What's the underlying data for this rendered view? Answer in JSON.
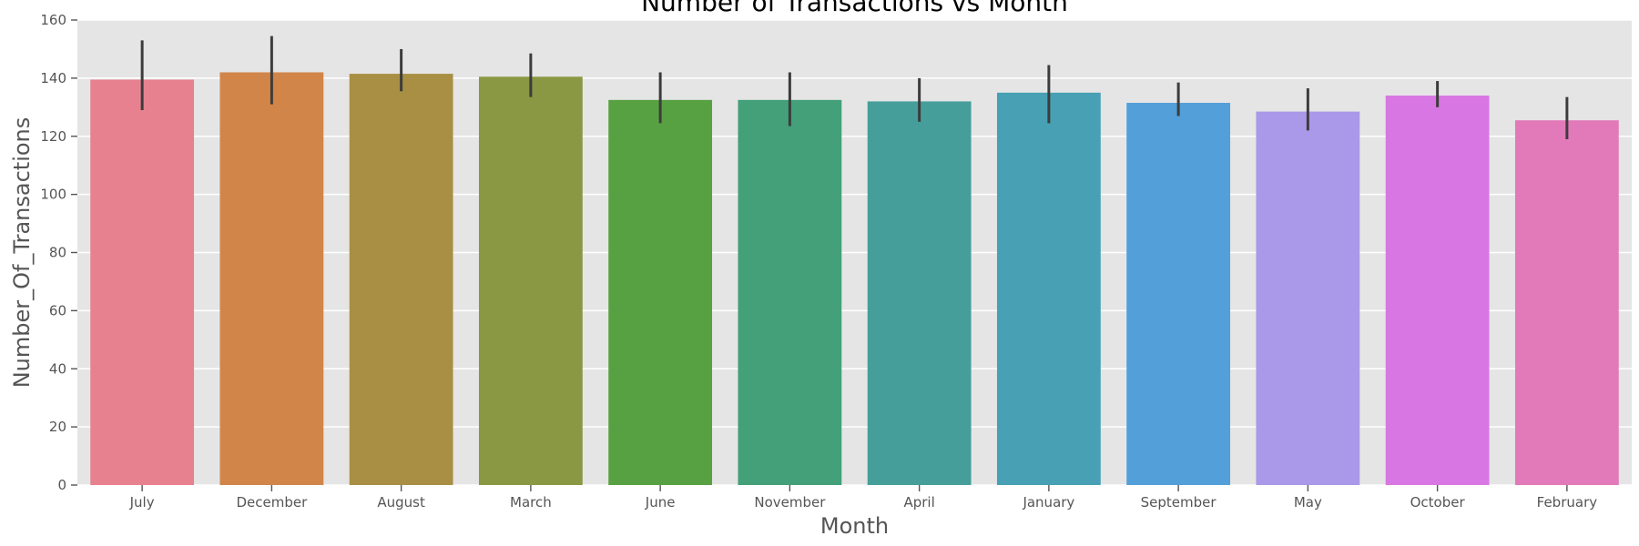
{
  "chart_data": {
    "type": "bar",
    "title": "Number of Transactions vs Month",
    "xlabel": "Month",
    "ylabel": "Number_Of_Transactions",
    "categories": [
      "July",
      "December",
      "August",
      "March",
      "June",
      "November",
      "April",
      "January",
      "September",
      "May",
      "October",
      "February"
    ],
    "values": [
      139.5,
      142,
      141.5,
      140.5,
      132.5,
      132.5,
      132,
      135,
      131.5,
      128.5,
      134,
      125.5
    ],
    "error_low": [
      129,
      131,
      135.5,
      133.5,
      124.5,
      123.5,
      125,
      124.5,
      127,
      122,
      130,
      119
    ],
    "error_high": [
      153,
      154.5,
      150,
      148.5,
      142,
      142,
      140,
      144.5,
      138.5,
      136.5,
      139,
      133.5
    ],
    "colors": [
      "#e8818f",
      "#d18549",
      "#a88f43",
      "#8a9843",
      "#58a143",
      "#43a079",
      "#459e99",
      "#47a0b3",
      "#529fd9",
      "#aa98e8",
      "#d877e3",
      "#e27ab9"
    ],
    "ylim": [
      0,
      160
    ],
    "yticks": [
      0,
      20,
      40,
      60,
      80,
      100,
      120,
      140,
      160
    ],
    "grid": true,
    "legend": "none",
    "background": "#e5e5e5",
    "grid_color": "#ffffff",
    "errorbar_color": "#3c3c3c"
  }
}
